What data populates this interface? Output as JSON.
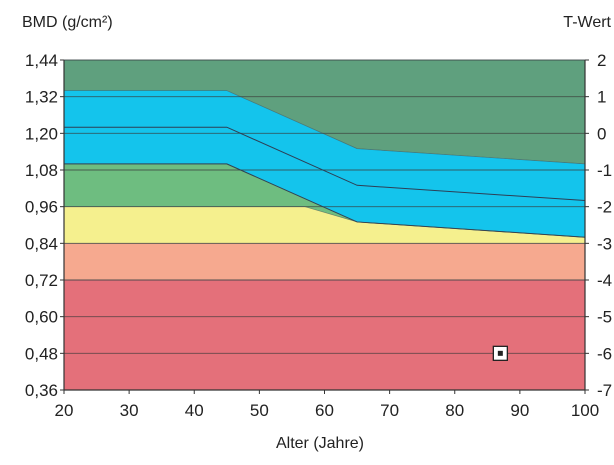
{
  "chart_data": {
    "type": "area",
    "title": "",
    "ylabel_left": "BMD (g/cm²)",
    "ylabel_right": "T-Wert",
    "xlabel": "Alter (Jahre)",
    "xlim": [
      20,
      100
    ],
    "ylim_left": [
      0.36,
      1.44
    ],
    "ylim_right": [
      -7,
      2
    ],
    "x_ticks": [
      "20",
      "30",
      "40",
      "50",
      "60",
      "70",
      "80",
      "90",
      "100"
    ],
    "y_ticks_left": [
      "0,36",
      "0,48",
      "0,60",
      "0,72",
      "0,84",
      "0,96",
      "1,08",
      "1,20",
      "1,32",
      "1,44"
    ],
    "y_ticks_right": [
      "-7",
      "-6",
      "-5",
      "-4",
      "-3",
      "-2",
      "-1",
      "0",
      "1",
      "2"
    ],
    "grid": true,
    "bands": [
      {
        "name": "",
        "color": "#e4707a",
        "lower": [
          [
            20,
            0.36
          ],
          [
            100,
            0.36
          ]
        ],
        "upper": [
          [
            20,
            0.72
          ],
          [
            100,
            0.72
          ]
        ]
      },
      {
        "name": "",
        "color": "#f6a98f",
        "lower": [
          [
            20,
            0.72
          ],
          [
            100,
            0.72
          ]
        ],
        "upper": [
          [
            20,
            0.84
          ],
          [
            100,
            0.84
          ]
        ]
      },
      {
        "name": "",
        "color": "#f5f08e",
        "lower": [
          [
            20,
            0.84
          ],
          [
            100,
            0.84
          ]
        ],
        "upper": [
          [
            20,
            0.96
          ],
          [
            57,
            0.96
          ],
          [
            65,
            0.91
          ],
          [
            100,
            0.86
          ]
        ]
      },
      {
        "name": "",
        "color": "#6ebd80",
        "lower": [
          [
            20,
            0.96
          ],
          [
            57,
            0.96
          ],
          [
            65,
            0.91
          ],
          [
            100,
            0.86
          ]
        ],
        "upper": [
          [
            20,
            1.1
          ],
          [
            45,
            1.1
          ],
          [
            65,
            0.91
          ],
          [
            100,
            0.86
          ]
        ]
      },
      {
        "name": "",
        "color": "#14c4ec",
        "lower": [
          [
            20,
            1.1
          ],
          [
            45,
            1.1
          ],
          [
            65,
            0.91
          ],
          [
            100,
            0.86
          ]
        ],
        "upper": [
          [
            20,
            1.34
          ],
          [
            45,
            1.34
          ],
          [
            65,
            1.15
          ],
          [
            100,
            1.1
          ]
        ]
      },
      {
        "name": "",
        "color": "#5fa07e",
        "lower": [
          [
            20,
            1.34
          ],
          [
            45,
            1.34
          ],
          [
            65,
            1.15
          ],
          [
            100,
            1.1
          ]
        ],
        "upper": [
          [
            20,
            1.44
          ],
          [
            100,
            1.44
          ]
        ]
      }
    ],
    "lines": [
      {
        "name": "",
        "points": [
          [
            20,
            1.22
          ],
          [
            45,
            1.22
          ],
          [
            65,
            1.03
          ],
          [
            100,
            0.98
          ]
        ]
      },
      {
        "name": "",
        "points": [
          [
            20,
            1.1
          ],
          [
            45,
            1.1
          ],
          [
            65,
            0.91
          ],
          [
            100,
            0.86
          ]
        ]
      }
    ],
    "points": [
      {
        "x": 87,
        "y": 0.48
      }
    ]
  }
}
